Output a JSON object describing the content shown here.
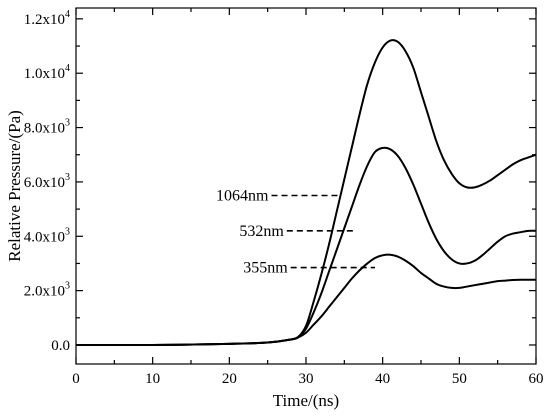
{
  "chart_data": {
    "type": "line",
    "xlabel": "Time/(ns)",
    "ylabel": "Relative Pressure/(Pa)",
    "xlim": [
      0,
      60
    ],
    "ylim": [
      -700,
      12400
    ],
    "grid": false,
    "x_ticks": [
      {
        "value": 0,
        "label": "0"
      },
      {
        "value": 10,
        "label": "10"
      },
      {
        "value": 20,
        "label": "20"
      },
      {
        "value": 30,
        "label": "30"
      },
      {
        "value": 40,
        "label": "40"
      },
      {
        "value": 50,
        "label": "50"
      },
      {
        "value": 60,
        "label": "60"
      }
    ],
    "y_ticks": [
      {
        "value": 0,
        "mant": "0.0",
        "exp": ""
      },
      {
        "value": 2000,
        "mant": "2.0x10",
        "exp": "3"
      },
      {
        "value": 4000,
        "mant": "4.0x10",
        "exp": "3"
      },
      {
        "value": 6000,
        "mant": "6.0x10",
        "exp": "3"
      },
      {
        "value": 8000,
        "mant": "8.0x10",
        "exp": "3"
      },
      {
        "value": 10000,
        "mant": "1.0x10",
        "exp": "4"
      },
      {
        "value": 12000,
        "mant": "1.2x10",
        "exp": "4"
      }
    ],
    "series": [
      {
        "name": "1064nm",
        "points": [
          [
            0,
            0
          ],
          [
            10,
            0
          ],
          [
            20,
            40
          ],
          [
            25,
            90
          ],
          [
            28,
            200
          ],
          [
            29,
            300
          ],
          [
            30,
            700
          ],
          [
            31,
            1600
          ],
          [
            32,
            2600
          ],
          [
            33,
            3700
          ],
          [
            34,
            4900
          ],
          [
            35,
            6100
          ],
          [
            36,
            7300
          ],
          [
            37,
            8500
          ],
          [
            38,
            9600
          ],
          [
            39,
            10400
          ],
          [
            40,
            10950
          ],
          [
            41,
            11200
          ],
          [
            42,
            11150
          ],
          [
            43,
            10800
          ],
          [
            44,
            10200
          ],
          [
            45,
            9300
          ],
          [
            46,
            8400
          ],
          [
            47,
            7500
          ],
          [
            48,
            6800
          ],
          [
            49,
            6300
          ],
          [
            50,
            5950
          ],
          [
            51,
            5800
          ],
          [
            52,
            5800
          ],
          [
            53,
            5900
          ],
          [
            54,
            6050
          ],
          [
            55,
            6250
          ],
          [
            56,
            6450
          ],
          [
            57,
            6650
          ],
          [
            58,
            6800
          ],
          [
            59,
            6900
          ],
          [
            60,
            7000
          ]
        ]
      },
      {
        "name": "532nm",
        "points": [
          [
            0,
            0
          ],
          [
            10,
            0
          ],
          [
            20,
            40
          ],
          [
            25,
            90
          ],
          [
            28,
            200
          ],
          [
            29,
            300
          ],
          [
            30,
            600
          ],
          [
            31,
            1200
          ],
          [
            32,
            1900
          ],
          [
            33,
            2700
          ],
          [
            34,
            3500
          ],
          [
            35,
            4300
          ],
          [
            36,
            5100
          ],
          [
            37,
            5900
          ],
          [
            38,
            6600
          ],
          [
            39,
            7100
          ],
          [
            40,
            7250
          ],
          [
            41,
            7200
          ],
          [
            42,
            6950
          ],
          [
            43,
            6500
          ],
          [
            44,
            5900
          ],
          [
            45,
            5200
          ],
          [
            46,
            4500
          ],
          [
            47,
            3900
          ],
          [
            48,
            3450
          ],
          [
            49,
            3150
          ],
          [
            50,
            3000
          ],
          [
            51,
            3000
          ],
          [
            52,
            3100
          ],
          [
            53,
            3300
          ],
          [
            54,
            3550
          ],
          [
            55,
            3800
          ],
          [
            56,
            4000
          ],
          [
            57,
            4100
          ],
          [
            58,
            4150
          ],
          [
            59,
            4200
          ],
          [
            60,
            4200
          ]
        ]
      },
      {
        "name": "355nm",
        "points": [
          [
            0,
            0
          ],
          [
            10,
            0
          ],
          [
            20,
            40
          ],
          [
            25,
            90
          ],
          [
            28,
            200
          ],
          [
            29,
            280
          ],
          [
            30,
            450
          ],
          [
            31,
            750
          ],
          [
            32,
            1050
          ],
          [
            33,
            1400
          ],
          [
            34,
            1750
          ],
          [
            35,
            2100
          ],
          [
            36,
            2450
          ],
          [
            37,
            2750
          ],
          [
            38,
            3000
          ],
          [
            39,
            3200
          ],
          [
            40,
            3300
          ],
          [
            41,
            3320
          ],
          [
            42,
            3250
          ],
          [
            43,
            3100
          ],
          [
            44,
            2900
          ],
          [
            45,
            2650
          ],
          [
            46,
            2450
          ],
          [
            47,
            2250
          ],
          [
            48,
            2150
          ],
          [
            49,
            2100
          ],
          [
            50,
            2100
          ],
          [
            51,
            2150
          ],
          [
            52,
            2200
          ],
          [
            53,
            2250
          ],
          [
            54,
            2300
          ],
          [
            55,
            2350
          ],
          [
            56,
            2370
          ],
          [
            57,
            2390
          ],
          [
            58,
            2400
          ],
          [
            59,
            2400
          ],
          [
            60,
            2400
          ]
        ]
      }
    ],
    "annotations": [
      {
        "text": "1064nm",
        "line_x": [
          25.5,
          34.5
        ],
        "y": 5500
      },
      {
        "text": "532nm",
        "line_x": [
          27.5,
          36.5
        ],
        "y": 4200
      },
      {
        "text": "355nm",
        "line_x": [
          28.0,
          39.0
        ],
        "y": 2850
      }
    ]
  }
}
